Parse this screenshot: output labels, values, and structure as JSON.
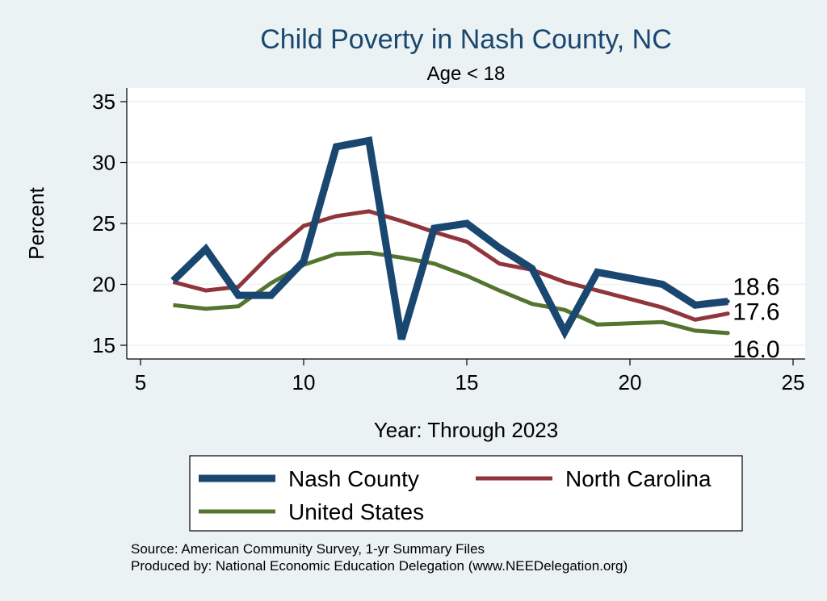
{
  "chart_data": {
    "type": "line",
    "title": "Child Poverty in Nash County, NC",
    "subtitle": "Age < 18",
    "xlabel": "Year: Through 2023",
    "ylabel": "Percent",
    "xlim": [
      5,
      25
    ],
    "ylim": [
      14,
      36
    ],
    "xticks": [
      5,
      10,
      15,
      20,
      25
    ],
    "yticks": [
      15,
      20,
      25,
      30,
      35
    ],
    "series": [
      {
        "name": "Nash County",
        "color": "#1a476f",
        "x": [
          6,
          7,
          8,
          9,
          10,
          11,
          12,
          13,
          14,
          15,
          16,
          17,
          18,
          19,
          20,
          21,
          22,
          23
        ],
        "values": [
          20.3,
          22.9,
          19.1,
          19.1,
          21.9,
          31.3,
          31.8,
          15.5,
          24.6,
          25.0,
          23.0,
          21.3,
          16.1,
          21.0,
          20.5,
          20.0,
          18.3,
          18.6
        ],
        "end_label": "18.6"
      },
      {
        "name": "North Carolina",
        "color": "#90353b",
        "x": [
          6,
          7,
          8,
          9,
          10,
          11,
          12,
          13,
          14,
          15,
          16,
          17,
          18,
          19,
          20,
          21,
          22,
          23
        ],
        "values": [
          20.2,
          19.5,
          19.8,
          22.5,
          24.8,
          25.6,
          26.0,
          25.2,
          24.3,
          23.5,
          21.7,
          21.2,
          20.2,
          19.5,
          18.8,
          18.1,
          17.1,
          17.6
        ],
        "end_label": "17.6"
      },
      {
        "name": "United States",
        "color": "#55752f",
        "x": [
          6,
          7,
          8,
          9,
          10,
          11,
          12,
          13,
          14,
          15,
          16,
          17,
          18,
          19,
          20,
          21,
          22,
          23
        ],
        "values": [
          18.3,
          18.0,
          18.2,
          20.1,
          21.6,
          22.5,
          22.6,
          22.2,
          21.7,
          20.7,
          19.5,
          18.4,
          17.9,
          16.7,
          16.8,
          16.9,
          16.2,
          16.0
        ],
        "end_label": "16.0"
      }
    ],
    "legend": [
      "Nash County",
      "North Carolina",
      "United States"
    ],
    "grid": true
  },
  "footer": {
    "source": "Source: American Community Survey, 1-yr Summary Files",
    "produced": "Produced by: National Economic Education Delegation (www.NEEDelegation.org)"
  },
  "colors": {
    "background": "#eaf2f3",
    "plot_bg": "#ffffff",
    "title": "#1a476f"
  }
}
